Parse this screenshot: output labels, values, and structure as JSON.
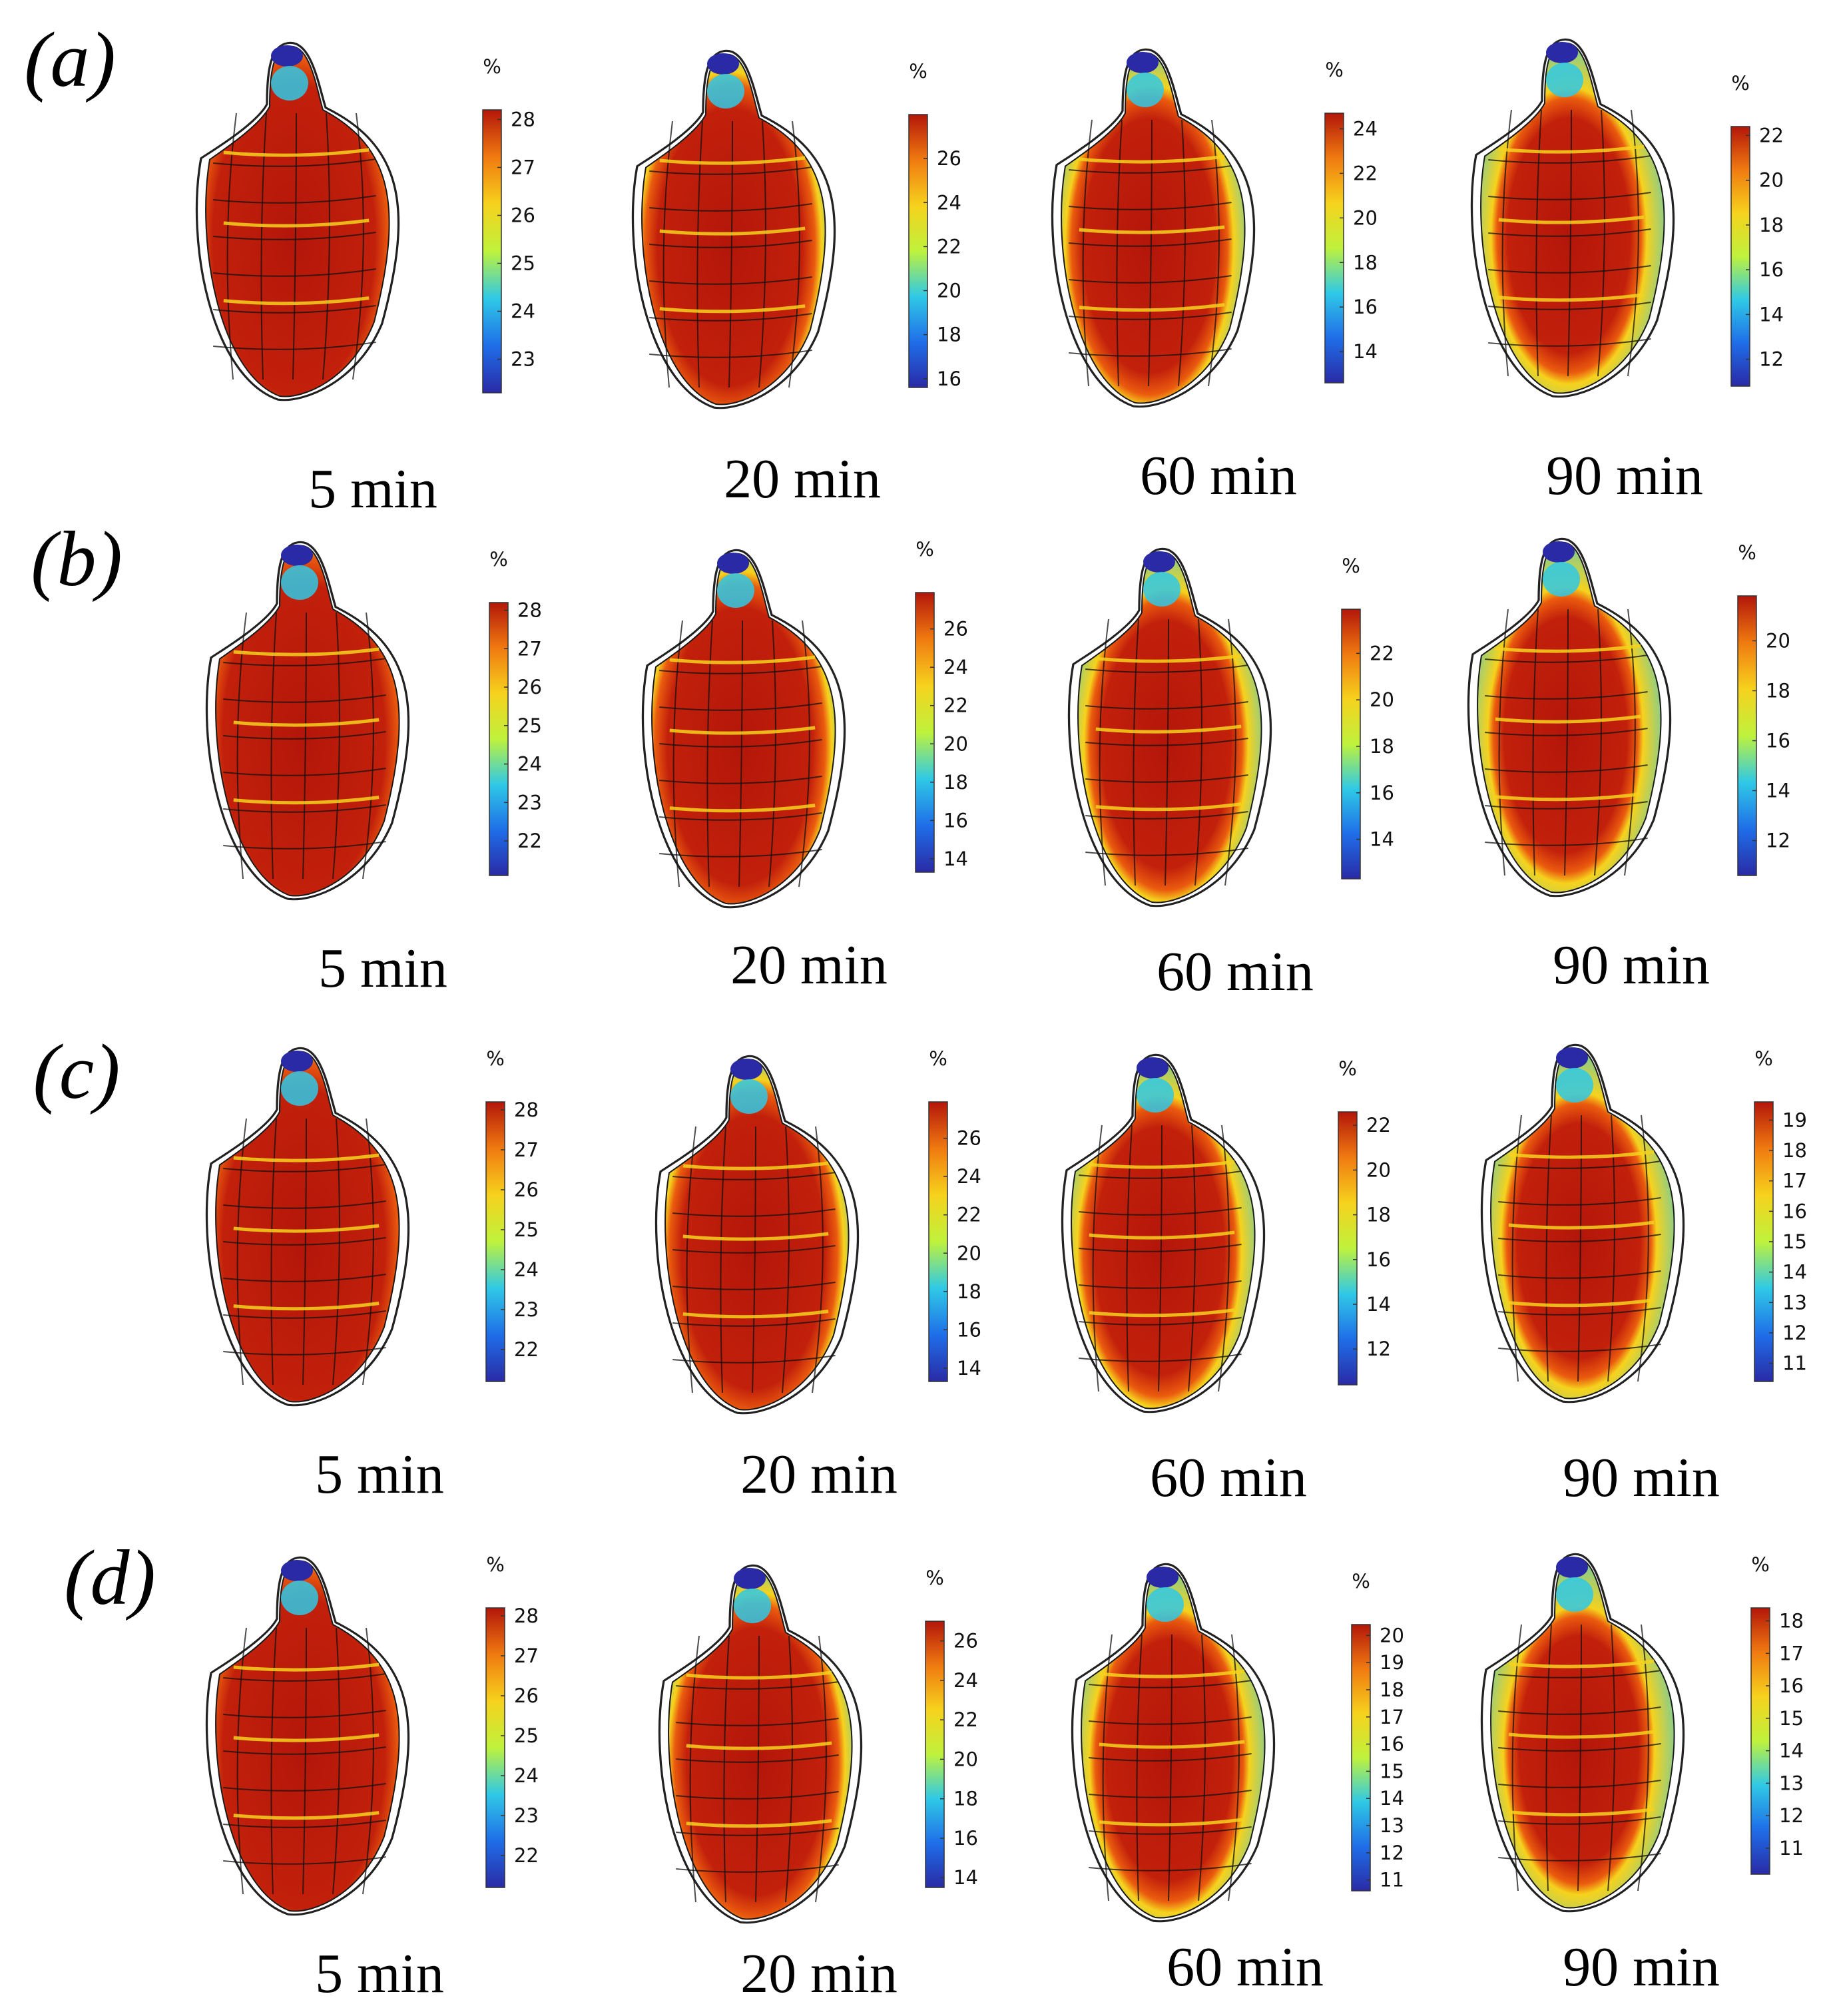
{
  "colormap": [
    "#2a2aa6",
    "#1f6ee8",
    "#2fc9e6",
    "#bff23c",
    "#f6d21d",
    "#f07a10",
    "#b3160a"
  ],
  "unit_label": "%",
  "rows": [
    {
      "label": "(a)",
      "panels": [
        {
          "time": "5 min",
          "cb_ticks": [
            "28",
            "27",
            "26",
            "25",
            "24",
            "23"
          ],
          "cb_range": [
            22.3,
            28.2
          ],
          "inner": 0.95
        },
        {
          "time": "20 min",
          "cb_ticks": [
            "26",
            "24",
            "22",
            "20",
            "18",
            "16"
          ],
          "cb_range": [
            15.6,
            28.0
          ],
          "inner": 0.85
        },
        {
          "time": "60 min",
          "cb_ticks": [
            "24",
            "22",
            "20",
            "18",
            "16",
            "14"
          ],
          "cb_range": [
            12.6,
            24.7
          ],
          "inner": 0.78
        },
        {
          "time": "90 min",
          "cb_ticks": [
            "22",
            "20",
            "18",
            "16",
            "14",
            "12"
          ],
          "cb_range": [
            10.8,
            22.4
          ],
          "inner": 0.72
        }
      ]
    },
    {
      "label": "(b)",
      "panels": [
        {
          "time": "5 min",
          "cb_ticks": [
            "28",
            "27",
            "26",
            "25",
            "24",
            "23",
            "22"
          ],
          "cb_range": [
            21.1,
            28.2
          ],
          "inner": 0.95
        },
        {
          "time": "20 min",
          "cb_ticks": [
            "26",
            "24",
            "22",
            "20",
            "18",
            "16",
            "14"
          ],
          "cb_range": [
            13.3,
            27.9
          ],
          "inner": 0.85
        },
        {
          "time": "60 min",
          "cb_ticks": [
            "22",
            "20",
            "18",
            "16",
            "14"
          ],
          "cb_range": [
            12.3,
            23.9
          ],
          "inner": 0.76
        },
        {
          "time": "90 min",
          "cb_ticks": [
            "20",
            "18",
            "16",
            "14",
            "12"
          ],
          "cb_range": [
            10.6,
            21.8
          ],
          "inner": 0.72
        }
      ]
    },
    {
      "label": "(c)",
      "panels": [
        {
          "time": "5 min",
          "cb_ticks": [
            "28",
            "27",
            "26",
            "25",
            "24",
            "23",
            "22"
          ],
          "cb_range": [
            21.2,
            28.2
          ],
          "inner": 0.95
        },
        {
          "time": "20 min",
          "cb_ticks": [
            "26",
            "24",
            "22",
            "20",
            "18",
            "16",
            "14"
          ],
          "cb_range": [
            13.3,
            27.9
          ],
          "inner": 0.84
        },
        {
          "time": "60 min",
          "cb_ticks": [
            "22",
            "20",
            "18",
            "16",
            "14",
            "12"
          ],
          "cb_range": [
            10.4,
            22.6
          ],
          "inner": 0.76
        },
        {
          "time": "90 min",
          "cb_ticks": [
            "19",
            "18",
            "17",
            "16",
            "15",
            "14",
            "13",
            "12",
            "11"
          ],
          "cb_range": [
            10.4,
            19.6
          ],
          "inner": 0.72
        }
      ]
    },
    {
      "label": "(d)",
      "panels": [
        {
          "time": "5 min",
          "cb_ticks": [
            "28",
            "27",
            "26",
            "25",
            "24",
            "23",
            "22"
          ],
          "cb_range": [
            21.2,
            28.2
          ],
          "inner": 0.95
        },
        {
          "time": "20 min",
          "cb_ticks": [
            "26",
            "24",
            "22",
            "20",
            "18",
            "16",
            "14"
          ],
          "cb_range": [
            13.5,
            27.0
          ],
          "inner": 0.82
        },
        {
          "time": "60 min",
          "cb_ticks": [
            "20",
            "19",
            "18",
            "17",
            "16",
            "15",
            "14",
            "13",
            "12",
            "11"
          ],
          "cb_range": [
            10.6,
            20.4
          ],
          "inner": 0.74
        },
        {
          "time": "90 min",
          "cb_ticks": [
            "18",
            "17",
            "16",
            "15",
            "14",
            "13",
            "12",
            "11"
          ],
          "cb_range": [
            10.2,
            18.4
          ],
          "inner": 0.7
        }
      ]
    }
  ]
}
